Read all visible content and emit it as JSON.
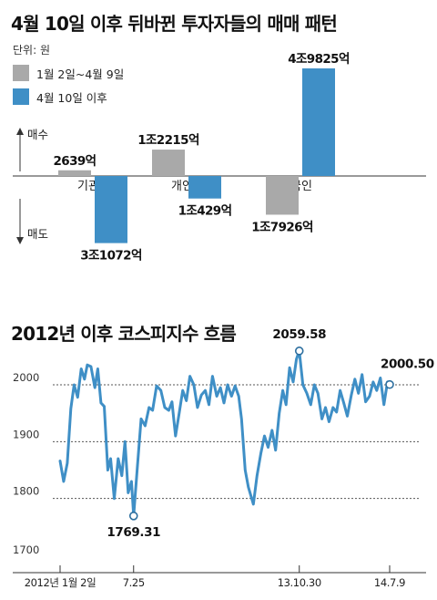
{
  "chart_data": [
    {
      "type": "bar",
      "title": "4월 10일 이후 뒤바뀐 투자자들의 매매 패턴",
      "unit_label": "단위: 원",
      "categories": [
        "기관",
        "개인",
        "외국인"
      ],
      "series": [
        {
          "name": "1월 2일~4월 9일",
          "color": "#a9a9a9",
          "values": [
            2639,
            12215,
            -17926
          ],
          "labels": [
            "2639억",
            "1조2215억",
            "1조7926억"
          ]
        },
        {
          "name": "4월 10일 이후",
          "color": "#3f8fc6",
          "values": [
            -31072,
            -10429,
            49825
          ],
          "labels": [
            "3조1072억",
            "1조429억",
            "4조9825억"
          ]
        }
      ],
      "value_unit": "억 원",
      "axis_top_label": "매수",
      "axis_bottom_label": "매도"
    },
    {
      "type": "line",
      "title": "2012년 이후 코스피지수 흐름",
      "color": "#3f8fc6",
      "ylim": [
        1700,
        2085
      ],
      "yticks": [
        1700,
        1800,
        1900,
        2000
      ],
      "grid": true,
      "xticks": [
        {
          "date": "2012-01-02",
          "label": "2012년 1월 2일"
        },
        {
          "date": "2012-07-25",
          "label": "7.25"
        },
        {
          "date": "2013-10-30",
          "label": "13.10.30"
        },
        {
          "date": "2014-07-09",
          "label": "14.7.9"
        }
      ],
      "annotations": [
        {
          "date": "2012-07-25",
          "value": 1769.31,
          "label": "1769.31"
        },
        {
          "date": "2013-10-30",
          "value": 2059.58,
          "label": "2059.58"
        },
        {
          "date": "2014-07-09",
          "value": 2000.5,
          "label": "2000.50"
        }
      ],
      "series": [
        {
          "values": [
            [
              "2012-01-02",
              1866
            ],
            [
              "2012-01-12",
              1830
            ],
            [
              "2012-01-22",
              1862
            ],
            [
              "2012-02-01",
              1958
            ],
            [
              "2012-02-10",
              2000
            ],
            [
              "2012-02-20",
              1978
            ],
            [
              "2012-03-01",
              2028
            ],
            [
              "2012-03-10",
              2010
            ],
            [
              "2012-03-18",
              2035
            ],
            [
              "2012-03-28",
              2032
            ],
            [
              "2012-04-08",
              1995
            ],
            [
              "2012-04-16",
              2028
            ],
            [
              "2012-04-25",
              1968
            ],
            [
              "2012-05-04",
              1962
            ],
            [
              "2012-05-14",
              1850
            ],
            [
              "2012-05-22",
              1870
            ],
            [
              "2012-06-01",
              1800
            ],
            [
              "2012-06-12",
              1870
            ],
            [
              "2012-06-22",
              1840
            ],
            [
              "2012-07-01",
              1900
            ],
            [
              "2012-07-10",
              1810
            ],
            [
              "2012-07-19",
              1830
            ],
            [
              "2012-07-25",
              1769.31
            ],
            [
              "2012-08-05",
              1860
            ],
            [
              "2012-08-15",
              1940
            ],
            [
              "2012-08-26",
              1928
            ],
            [
              "2012-09-06",
              1960
            ],
            [
              "2012-09-16",
              1955
            ],
            [
              "2012-09-27",
              1998
            ],
            [
              "2012-10-09",
              1990
            ],
            [
              "2012-10-20",
              1960
            ],
            [
              "2012-10-31",
              1955
            ],
            [
              "2012-11-09",
              1970
            ],
            [
              "2012-11-19",
              1910
            ],
            [
              "2012-11-29",
              1950
            ],
            [
              "2012-12-09",
              1990
            ],
            [
              "2012-12-19",
              1972
            ],
            [
              "2012-12-29",
              2015
            ],
            [
              "2013-01-09",
              2000
            ],
            [
              "2013-01-19",
              1960
            ],
            [
              "2013-01-30",
              1982
            ],
            [
              "2013-02-10",
              1990
            ],
            [
              "2013-02-20",
              1965
            ],
            [
              "2013-03-02",
              2015
            ],
            [
              "2013-03-14",
              1980
            ],
            [
              "2013-03-24",
              1995
            ],
            [
              "2013-04-03",
              1968
            ],
            [
              "2013-04-13",
              2000
            ],
            [
              "2013-04-24",
              1980
            ],
            [
              "2013-05-04",
              1998
            ],
            [
              "2013-05-14",
              1980
            ],
            [
              "2013-05-22",
              1940
            ],
            [
              "2013-06-01",
              1850
            ],
            [
              "2013-06-10",
              1820
            ],
            [
              "2013-06-24",
              1790
            ],
            [
              "2013-07-04",
              1840
            ],
            [
              "2013-07-15",
              1880
            ],
            [
              "2013-07-25",
              1910
            ],
            [
              "2013-08-04",
              1890
            ],
            [
              "2013-08-15",
              1920
            ],
            [
              "2013-08-25",
              1885
            ],
            [
              "2013-09-04",
              1950
            ],
            [
              "2013-09-14",
              1990
            ],
            [
              "2013-09-23",
              1965
            ],
            [
              "2013-10-03",
              2030
            ],
            [
              "2013-10-13",
              2005
            ],
            [
              "2013-10-22",
              2045
            ],
            [
              "2013-10-30",
              2059.58
            ],
            [
              "2013-11-09",
              2000
            ],
            [
              "2013-11-20",
              1985
            ],
            [
              "2013-12-01",
              1965
            ],
            [
              "2013-12-11",
              2000
            ],
            [
              "2013-12-21",
              1985
            ],
            [
              "2014-01-01",
              1940
            ],
            [
              "2014-01-11",
              1960
            ],
            [
              "2014-01-21",
              1935
            ],
            [
              "2014-02-01",
              1960
            ],
            [
              "2014-02-11",
              1952
            ],
            [
              "2014-02-21",
              1990
            ],
            [
              "2014-03-03",
              1968
            ],
            [
              "2014-03-13",
              1945
            ],
            [
              "2014-03-24",
              1982
            ],
            [
              "2014-04-03",
              2010
            ],
            [
              "2014-04-13",
              1985
            ],
            [
              "2014-04-23",
              2018
            ],
            [
              "2014-05-03",
              1970
            ],
            [
              "2014-05-14",
              1980
            ],
            [
              "2014-05-24",
              2005
            ],
            [
              "2014-06-03",
              1990
            ],
            [
              "2014-06-13",
              2012
            ],
            [
              "2014-06-23",
              1965
            ],
            [
              "2014-07-03",
              2005
            ],
            [
              "2014-07-09",
              2000.5
            ]
          ]
        }
      ]
    }
  ]
}
